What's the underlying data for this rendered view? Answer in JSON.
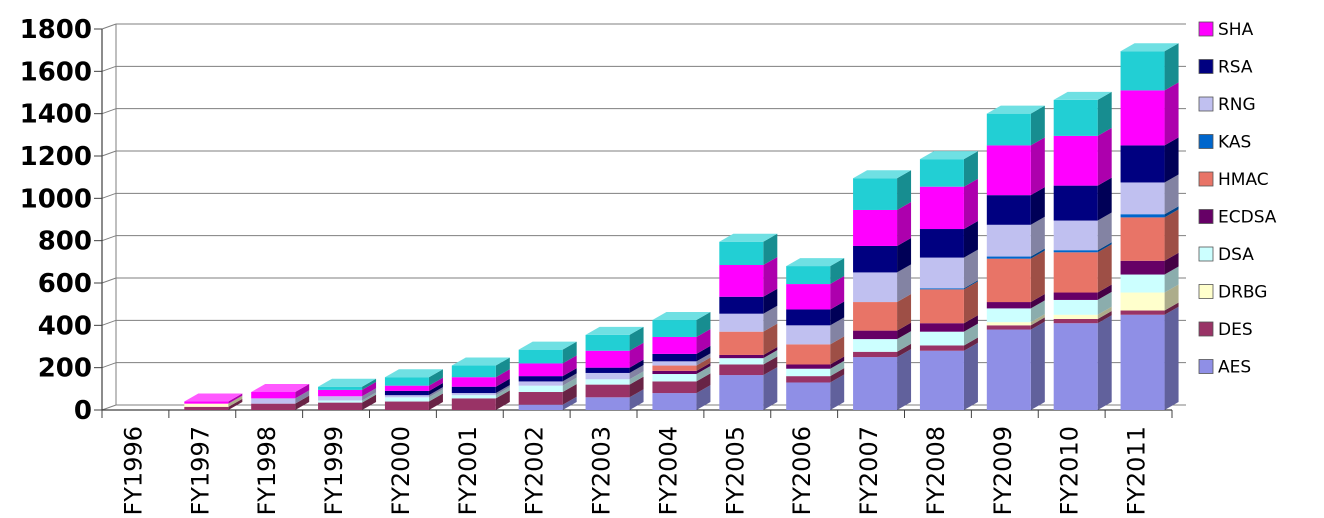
{
  "chart_data": {
    "type": "bar",
    "stacked": true,
    "three_d": true,
    "title": "",
    "xlabel": "",
    "ylabel": "",
    "ylim": [
      0,
      1800
    ],
    "yticks": [
      0,
      200,
      400,
      600,
      800,
      1000,
      1200,
      1400,
      1600,
      1800
    ],
    "grid": true,
    "legend_position": "right",
    "categories": [
      "FY1996",
      "FY1997",
      "FY1998",
      "FY1999",
      "FY2000",
      "FY2001",
      "FY2002",
      "FY2003",
      "FY2004",
      "FY2005",
      "FY2006",
      "FY2007",
      "FY2008",
      "FY2009",
      "FY2010",
      "FY2011"
    ],
    "series": [
      {
        "name": "AES",
        "color": "#8f8fe6",
        "values": [
          0,
          0,
          0,
          0,
          0,
          0,
          25,
          60,
          80,
          165,
          130,
          250,
          280,
          380,
          410,
          450
        ]
      },
      {
        "name": "DES",
        "color": "#993366",
        "values": [
          0,
          15,
          30,
          35,
          40,
          55,
          60,
          60,
          55,
          50,
          30,
          25,
          25,
          20,
          20,
          20
        ]
      },
      {
        "name": "DRBG",
        "color": "#ffffcc",
        "values": [
          0,
          15,
          0,
          0,
          0,
          0,
          0,
          0,
          0,
          0,
          0,
          0,
          0,
          15,
          20,
          85
        ]
      },
      {
        "name": "DSA",
        "color": "#ccffff",
        "values": [
          0,
          0,
          0,
          10,
          20,
          15,
          30,
          25,
          35,
          30,
          35,
          60,
          65,
          65,
          70,
          85
        ]
      },
      {
        "name": "ECDSA",
        "color": "#660066",
        "values": [
          0,
          0,
          0,
          0,
          0,
          0,
          0,
          0,
          15,
          15,
          20,
          40,
          40,
          30,
          35,
          65
        ]
      },
      {
        "name": "HMAC",
        "color": "#e87467",
        "values": [
          0,
          0,
          0,
          0,
          0,
          0,
          0,
          0,
          25,
          110,
          95,
          135,
          160,
          205,
          190,
          205
        ]
      },
      {
        "name": "KAS",
        "color": "#0066cc",
        "values": [
          0,
          0,
          0,
          0,
          0,
          0,
          0,
          0,
          0,
          0,
          0,
          0,
          5,
          10,
          10,
          15
        ]
      },
      {
        "name": "RNG",
        "color": "#c0c0f0",
        "values": [
          0,
          0,
          25,
          20,
          10,
          10,
          20,
          30,
          20,
          85,
          90,
          140,
          145,
          150,
          140,
          150
        ]
      },
      {
        "name": "RSA",
        "color": "#000080",
        "values": [
          0,
          0,
          0,
          0,
          20,
          30,
          25,
          25,
          35,
          80,
          75,
          125,
          135,
          140,
          165,
          175
        ]
      },
      {
        "name": "SHA",
        "color": "#ff00ff",
        "values": [
          0,
          10,
          30,
          30,
          25,
          45,
          60,
          80,
          80,
          150,
          120,
          170,
          200,
          235,
          235,
          260
        ]
      },
      {
        "name": "",
        "color": "#22cfd4",
        "values": [
          0,
          0,
          0,
          15,
          40,
          55,
          65,
          75,
          80,
          110,
          85,
          150,
          130,
          150,
          170,
          185
        ]
      }
    ]
  }
}
